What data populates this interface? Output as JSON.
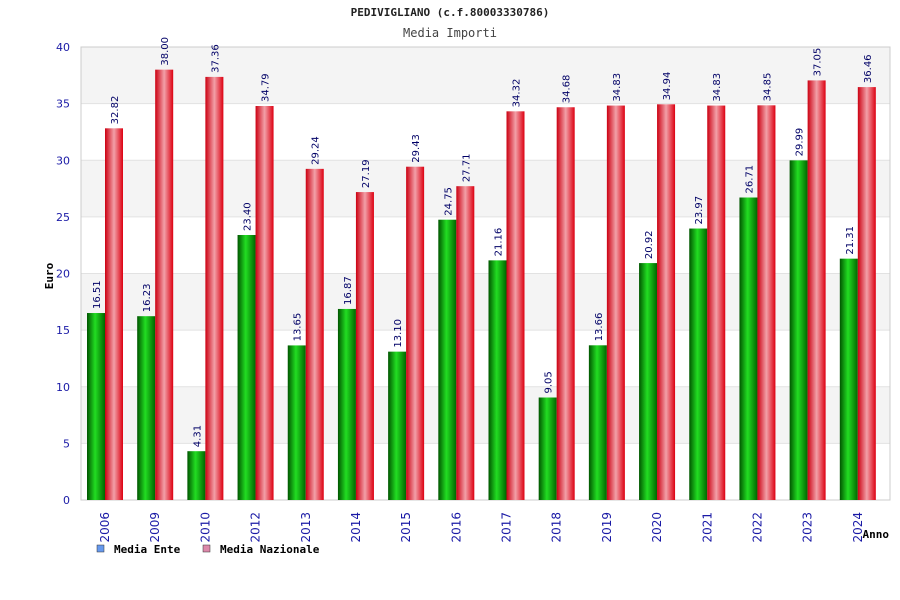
{
  "chart_data": {
    "type": "bar",
    "title": "PEDIVIGLIANO (c.f.80003330786)",
    "subtitle": "Media Importi",
    "ylabel": "Euro",
    "xlabel": "Anno",
    "ylim": [
      0,
      40
    ],
    "yticks": [
      0,
      5,
      10,
      15,
      20,
      25,
      30,
      35,
      40
    ],
    "grid": true,
    "legend_position": "bottom-left",
    "categories": [
      "2006",
      "2009",
      "2010",
      "2012",
      "2013",
      "2014",
      "2015",
      "2016",
      "2017",
      "2018",
      "2019",
      "2020",
      "2021",
      "2022",
      "2023",
      "2024"
    ],
    "series": [
      {
        "name": "Media Ente",
        "bar_color": "#00aa00",
        "legend_color": "#6699ee",
        "values": [
          16.51,
          16.23,
          4.31,
          23.4,
          13.65,
          16.87,
          13.1,
          24.75,
          21.16,
          9.05,
          13.66,
          20.92,
          23.97,
          26.71,
          29.99,
          21.31
        ],
        "labels": [
          "16.51",
          "16.23",
          "4.31",
          "23.40",
          "13.65",
          "16.87",
          "13.10",
          "24.75",
          "21.16",
          "9.05",
          "13.66",
          "20.92",
          "23.97",
          "26.71",
          "29.99",
          "21.31"
        ]
      },
      {
        "name": "Media Nazionale",
        "bar_color": "#ee1122",
        "legend_color": "#dd88aa",
        "values": [
          32.82,
          38.0,
          37.36,
          34.79,
          29.24,
          27.19,
          29.43,
          27.71,
          34.32,
          34.68,
          34.83,
          34.94,
          34.83,
          34.85,
          37.05,
          36.46
        ],
        "labels": [
          "32.82",
          "38.00",
          "37.36",
          "34.79",
          "29.24",
          "27.19",
          "29.43",
          "27.71",
          "34.32",
          "34.68",
          "34.83",
          "34.94",
          "34.83",
          "34.85",
          "37.05",
          "36.46"
        ]
      }
    ]
  }
}
